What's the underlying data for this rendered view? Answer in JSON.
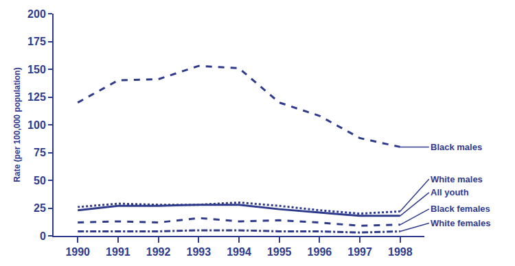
{
  "chart_data": {
    "type": "line",
    "y_label": "Rate (per 100,000 population)",
    "x": [
      1990,
      1991,
      1992,
      1993,
      1994,
      1995,
      1996,
      1997,
      1998
    ],
    "xlim": [
      1989.4,
      1998.6
    ],
    "xticks": [
      1990,
      1991,
      1992,
      1993,
      1994,
      1995,
      1996,
      1997,
      1998
    ],
    "ylim": [
      0,
      200
    ],
    "yticks": [
      0,
      25,
      50,
      75,
      100,
      125,
      150,
      175,
      200
    ],
    "grid": false,
    "series": [
      {
        "name": "Black males",
        "color": "#2e3a8c",
        "line_style": "dash",
        "values": [
          120,
          140,
          141,
          153,
          151,
          120,
          108,
          88,
          80
        ]
      },
      {
        "name": "White males",
        "color": "#2e3a8c",
        "line_style": "dot",
        "values": [
          26,
          29,
          28,
          28,
          30,
          27,
          23,
          20,
          22
        ]
      },
      {
        "name": "All youth",
        "color": "#2e3a8c",
        "line_style": "solid",
        "values": [
          23,
          27,
          27,
          28,
          28,
          24,
          21,
          18,
          18
        ]
      },
      {
        "name": "Black females",
        "color": "#2e3a8c",
        "line_style": "dash",
        "values": [
          12,
          13,
          12,
          16,
          13,
          14,
          12,
          9,
          10
        ]
      },
      {
        "name": "White females",
        "color": "#2e3a8c",
        "line_style": "dashdot",
        "values": [
          4,
          4,
          4,
          5,
          5,
          4,
          4,
          3,
          4
        ]
      }
    ]
  }
}
